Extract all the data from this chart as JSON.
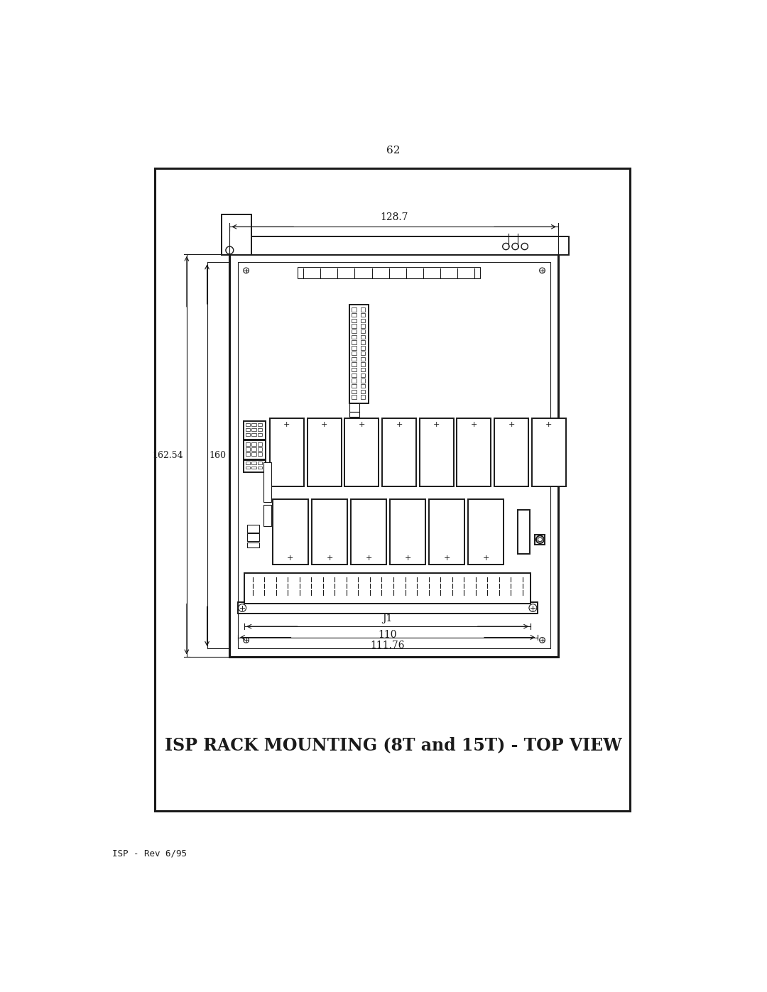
{
  "page_number": "62",
  "footer_text": "ISP - Rev 6/95",
  "title": "ISP RACK MOUNTING (8T and 15T) - TOP VIEW",
  "bg_color": "#ffffff",
  "line_color": "#1a1a1a",
  "dim_128_7": "128.7",
  "dim_162_54": "162.54",
  "dim_160": "160",
  "dim_110": "110",
  "dim_111_76": "111.76",
  "label_J1": "J1"
}
